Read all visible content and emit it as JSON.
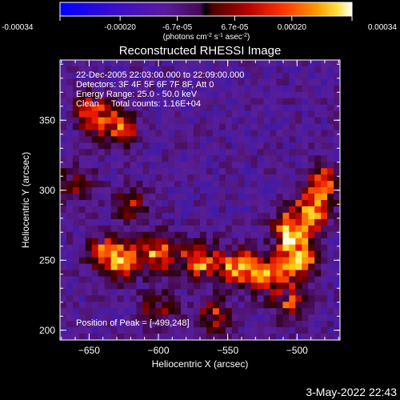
{
  "chart_data": {
    "type": "heatmap",
    "title": "Reconstructed RHESSI Image",
    "xlabel": "Heliocentric X (arcsec)",
    "ylabel": "Heliocentric Y (arcsec)",
    "xlim": [
      -671,
      -469
    ],
    "ylim": [
      193,
      393
    ],
    "xticks": [
      -650,
      -600,
      -550,
      -500
    ],
    "yticks": [
      200,
      250,
      300,
      350
    ],
    "colorbar": {
      "min": -0.00034,
      "max": 0.00034,
      "ticks": [
        "-0.00034",
        "-0.00020",
        "-6.7e-05",
        "6.7e-05",
        "0.00020",
        "0.00034"
      ],
      "tick_values": [
        -0.00034,
        -0.0002,
        -6.7e-05,
        6.7e-05,
        0.0002,
        0.00034
      ],
      "label_parts": [
        "(photons cm",
        "-2",
        " s",
        "-1",
        " asec",
        "-2",
        ")"
      ]
    },
    "annotations": [
      "22-Dec-2005 22:03:00.000 to 22:09:00.000",
      "Detectors: 3F 4F 5F 6F 7F 8F, Att 0",
      "Energy Range: 25.0 - 50.0 keV",
      "Clean     Total counts: 1.16E+04"
    ],
    "peak_label": "Position of Peak = [-499,248]",
    "grid": false,
    "colormap": "blue-purple-red-yellow-white",
    "bright_regions": [
      {
        "x": -500,
        "y": 250,
        "intensity": 1.0
      },
      {
        "x": -505,
        "y": 270,
        "intensity": 0.9
      },
      {
        "x": -490,
        "y": 285,
        "intensity": 0.8
      },
      {
        "x": -525,
        "y": 240,
        "intensity": 0.85
      },
      {
        "x": -545,
        "y": 245,
        "intensity": 0.75
      },
      {
        "x": -570,
        "y": 250,
        "intensity": 0.8
      },
      {
        "x": -600,
        "y": 255,
        "intensity": 0.8
      },
      {
        "x": -625,
        "y": 250,
        "intensity": 0.75
      },
      {
        "x": -640,
        "y": 255,
        "intensity": 0.6
      },
      {
        "x": -648,
        "y": 355,
        "intensity": 0.75
      },
      {
        "x": -628,
        "y": 345,
        "intensity": 0.7
      },
      {
        "x": -600,
        "y": 215,
        "intensity": 0.5
      },
      {
        "x": -560,
        "y": 210,
        "intensity": 0.5
      },
      {
        "x": -620,
        "y": 290,
        "intensity": 0.45
      },
      {
        "x": -480,
        "y": 305,
        "intensity": 0.65
      },
      {
        "x": -505,
        "y": 220,
        "intensity": 0.55
      },
      {
        "x": -660,
        "y": 305,
        "intensity": 0.45
      }
    ]
  },
  "footer": {
    "timestamp": "3-May-2022 22:43"
  },
  "colors": {
    "background": "#000000",
    "foreground": "#ffffff"
  }
}
